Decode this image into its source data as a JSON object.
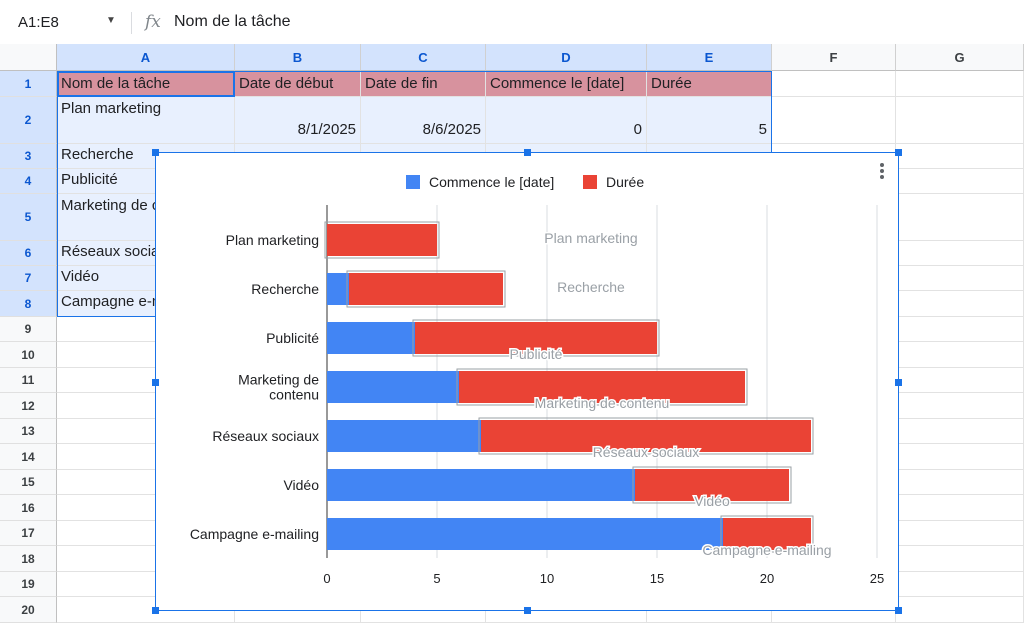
{
  "formula_bar": {
    "name_box": "A1:E8",
    "dropdown_icon": "caret-down-icon",
    "fx_label": "fx",
    "formula": "Nom de la tâche"
  },
  "columns": [
    "A",
    "B",
    "C",
    "D",
    "E",
    "F",
    "G"
  ],
  "rows": [
    "1",
    "2",
    "3",
    "4",
    "5",
    "6",
    "7",
    "8",
    "9",
    "10",
    "11",
    "12",
    "13",
    "14",
    "15",
    "16",
    "17",
    "18",
    "19",
    "20"
  ],
  "sheet": {
    "header_row": [
      "Nom de la tâche",
      "Date de début",
      "Date de fin",
      "Commence le [date]",
      "Durée"
    ],
    "data_rows": [
      [
        "Plan marketing",
        "8/1/2025",
        "8/6/2025",
        "0",
        "5"
      ],
      [
        "Recherche",
        "",
        "",
        "",
        ""
      ],
      [
        "Publicité",
        "",
        "",
        "",
        ""
      ],
      [
        "Marketing de contenu",
        "",
        "",
        "",
        ""
      ],
      [
        "Réseaux sociaux",
        "",
        "",
        "",
        ""
      ],
      [
        "Vidéo",
        "",
        "",
        "",
        ""
      ],
      [
        "Campagne e-mailing",
        "",
        "",
        "",
        ""
      ]
    ]
  },
  "colors": {
    "start_series": "#4285f4",
    "duration_series": "#ea4335",
    "header_fill": "#d7929e",
    "selection": "#1a73e8"
  },
  "chart_data": {
    "type": "bar",
    "orientation": "horizontal",
    "stacked": true,
    "categories": [
      "Plan marketing",
      "Recherche",
      "Publicité",
      "Marketing de contenu",
      "Réseaux sociaux",
      "Vidéo",
      "Campagne e-mailing"
    ],
    "category_labels": [
      [
        "Plan marketing"
      ],
      [
        "Recherche"
      ],
      [
        "Publicité"
      ],
      [
        "Marketing de",
        "contenu"
      ],
      [
        "Réseaux sociaux"
      ],
      [
        "Vidéo"
      ],
      [
        "Campagne e-mailing"
      ]
    ],
    "series": [
      {
        "name": "Commence le [date]",
        "color": "#4285f4",
        "values": [
          0,
          1,
          4,
          6,
          7,
          14,
          18
        ]
      },
      {
        "name": "Durée",
        "color": "#ea4335",
        "values": [
          5,
          7,
          11,
          13,
          15,
          7,
          4
        ]
      }
    ],
    "xlim": [
      0,
      25
    ],
    "x_ticks": [
      "0",
      "5",
      "10",
      "15",
      "20",
      "25"
    ],
    "grid": true,
    "legend_position": "top",
    "data_labels": [
      "Plan marketing",
      "Recherche",
      "Publicité",
      "Marketing de contenu",
      "Réseaux sociaux",
      "Vidéo",
      "Campagne e-mailing"
    ],
    "title": "",
    "xlabel": "",
    "ylabel": ""
  }
}
